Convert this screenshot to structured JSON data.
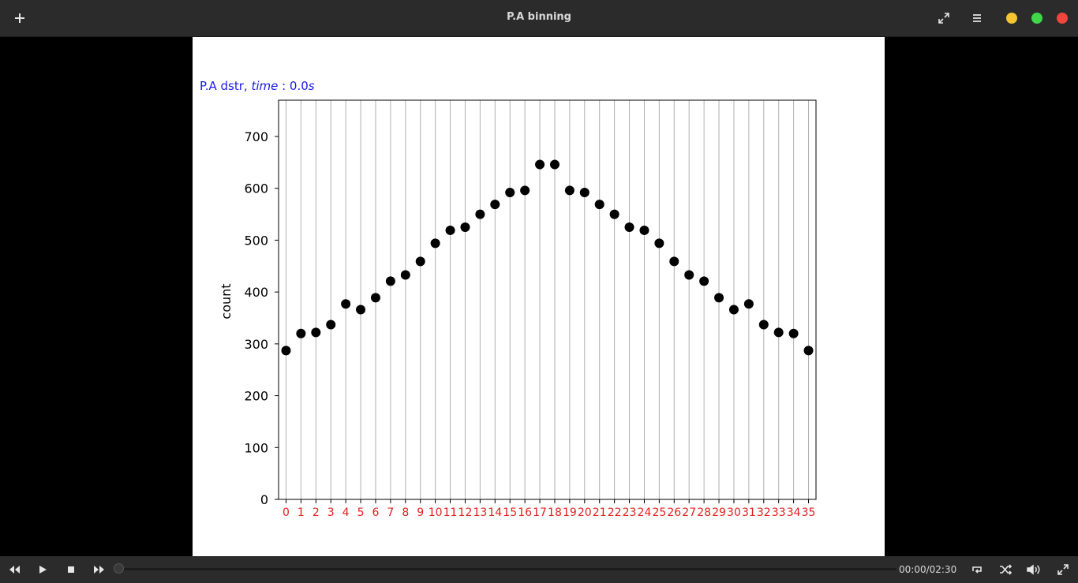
{
  "window": {
    "title": "P.A binning"
  },
  "controls": {
    "time": "00:00/02:30",
    "progress": 0.0
  },
  "colors": {
    "title_color": "#1a1aee",
    "tick_label_color": "#e0201c",
    "marker": "#000000"
  },
  "chart_data": {
    "type": "scatter",
    "title_prefix": "P.A dstr, ",
    "title_time_label": "time",
    "title_time_value": " : 0.0",
    "title_time_unit": "s",
    "xlabel": "",
    "ylabel": "count",
    "xlim": [
      -0.5,
      35.5
    ],
    "ylim": [
      0,
      770
    ],
    "yticks": [
      0,
      100,
      200,
      300,
      400,
      500,
      600,
      700
    ],
    "x_tick_labels": [
      "0",
      "1",
      "2",
      "3",
      "4",
      "5",
      "6",
      "7",
      "8",
      "9",
      "10",
      "11",
      "12",
      "13",
      "14",
      "15",
      "16",
      "17",
      "18",
      "19",
      "20",
      "21",
      "22",
      "23",
      "24",
      "25",
      "26",
      "27",
      "28",
      "29",
      "30",
      "31",
      "32",
      "33",
      "34",
      "35"
    ],
    "grid": "vertical",
    "values": [
      287,
      320,
      322,
      337,
      377,
      366,
      389,
      421,
      433,
      459,
      494,
      519,
      525,
      550,
      569,
      592,
      596,
      646,
      646,
      596,
      592,
      569,
      550,
      525,
      519,
      494,
      459,
      433,
      421,
      389,
      366,
      377,
      337,
      322,
      320,
      287
    ]
  }
}
